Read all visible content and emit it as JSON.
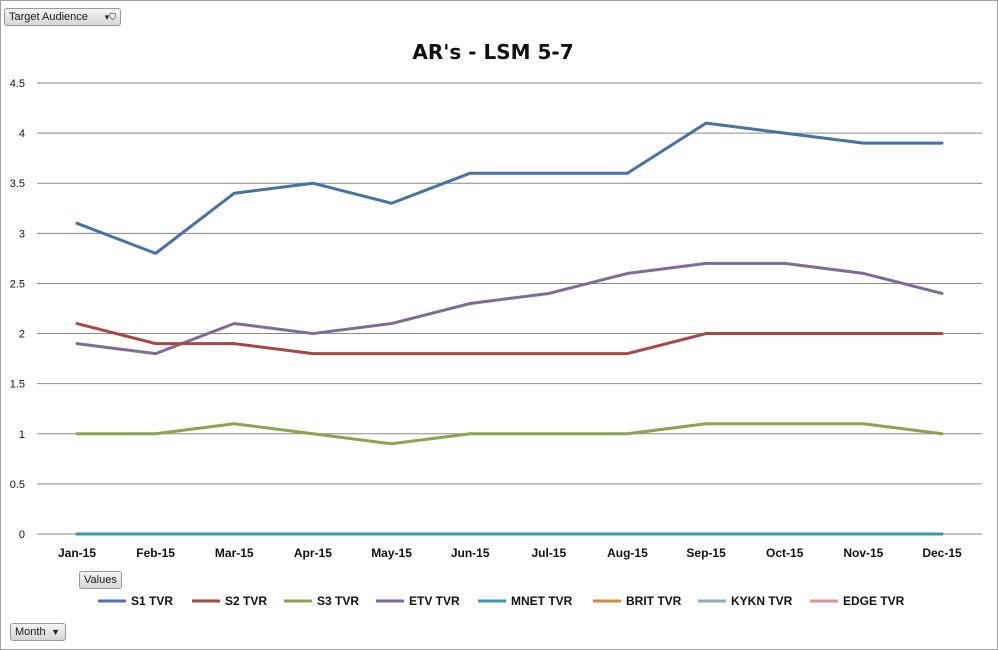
{
  "filters": {
    "target_audience_label": "Target Audience",
    "values_label": "Values",
    "month_label": "Month"
  },
  "icons": {
    "filter": "filter-funnel-icon",
    "dropdown": "dropdown-arrow-icon"
  },
  "chart_data": {
    "type": "line",
    "title": "AR's - LSM 5-7",
    "xlabel": "",
    "ylabel": "",
    "ylim": [
      0,
      4.5
    ],
    "yticks": [
      "0",
      "0.5",
      "1",
      "1.5",
      "2",
      "2.5",
      "3",
      "3.5",
      "4",
      "4.5"
    ],
    "grid": true,
    "legend_position": "bottom",
    "categories": [
      "Jan-15",
      "Feb-15",
      "Mar-15",
      "Apr-15",
      "May-15",
      "Jun-15",
      "Jul-15",
      "Aug-15",
      "Sep-15",
      "Oct-15",
      "Nov-15",
      "Dec-15"
    ],
    "series": [
      {
        "name": "S1 TVR",
        "color": "#4572A7",
        "values": [
          3.1,
          2.8,
          3.4,
          3.5,
          3.3,
          3.6,
          3.6,
          3.6,
          4.1,
          4.0,
          3.9,
          3.9
        ]
      },
      {
        "name": "S2 TVR",
        "color": "#AA4643",
        "values": [
          2.1,
          1.9,
          1.9,
          1.8,
          1.8,
          1.8,
          1.8,
          1.8,
          2.0,
          2.0,
          2.0,
          2.0
        ]
      },
      {
        "name": "S3 TVR",
        "color": "#89A54E",
        "values": [
          1.0,
          1.0,
          1.1,
          1.0,
          0.9,
          1.0,
          1.0,
          1.0,
          1.1,
          1.1,
          1.1,
          1.0
        ]
      },
      {
        "name": "ETV TVR",
        "color": "#80699B",
        "values": [
          1.9,
          1.8,
          2.1,
          2.0,
          2.1,
          2.3,
          2.4,
          2.6,
          2.7,
          2.7,
          2.6,
          2.4
        ]
      },
      {
        "name": "MNET TVR",
        "color": "#3D96AE",
        "values": [
          0,
          0,
          0,
          0,
          0,
          0,
          0,
          0,
          0,
          0,
          0,
          0
        ]
      },
      {
        "name": "BRIT TVR",
        "color": "#DB843D",
        "values": [
          0,
          0,
          0,
          0,
          0,
          0,
          0,
          0,
          0,
          0,
          0,
          0
        ]
      },
      {
        "name": "KYKN TVR",
        "color": "#93A9CF",
        "values": [
          0,
          0,
          0,
          0,
          0,
          0,
          0,
          0,
          0,
          0,
          0,
          0
        ]
      },
      {
        "name": "EDGE TVR",
        "color": "#D99694",
        "values": [
          0,
          0,
          0,
          0,
          0,
          0,
          0,
          0,
          0,
          0,
          0,
          0
        ]
      }
    ]
  }
}
